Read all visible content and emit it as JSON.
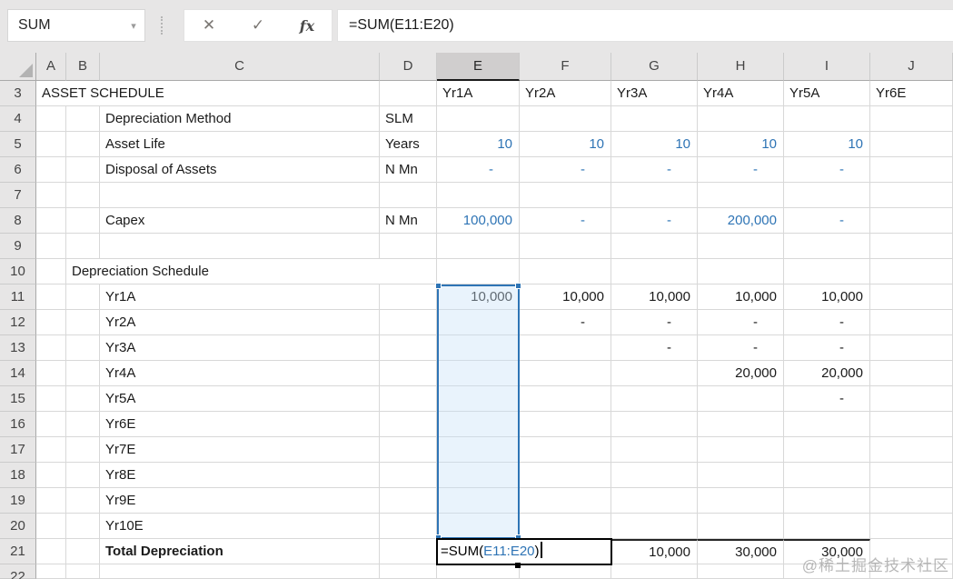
{
  "chrome": {
    "name_box": "SUM",
    "name_box_arrow": "▾",
    "cancel_label": "✕",
    "enter_label": "✓",
    "fx_label": "fx",
    "formula_bar_text": "=SUM(E11:E20)"
  },
  "formula": {
    "prefix": "=SUM(",
    "ref": "E11:E20",
    "suffix": ")"
  },
  "colors": {
    "input_blue": "#2E74B5",
    "selection_border": "#2E74B5",
    "selection_fill": "#E4EFF9",
    "header_bg": "#E7E6E6",
    "selected_header_bg": "#D0CECE",
    "gridline": "#D8D8D8",
    "text": "#1A1A1A"
  },
  "grid": {
    "column_headers": [
      "A",
      "B",
      "C",
      "D",
      "E",
      "F",
      "G",
      "H",
      "I",
      "J"
    ],
    "selected_column": "E",
    "first_row": 3,
    "last_row": 22,
    "active_cell": "E21",
    "selected_range": "E11:E20",
    "cells": [
      {
        "r": 3,
        "c": "A",
        "t": "ASSET SCHEDULE",
        "s": "lbl",
        "span": 3
      },
      {
        "r": 3,
        "c": "E",
        "t": "Yr1A",
        "s": "lbl"
      },
      {
        "r": 3,
        "c": "F",
        "t": "Yr2A",
        "s": "lbl"
      },
      {
        "r": 3,
        "c": "G",
        "t": "Yr3A",
        "s": "lbl"
      },
      {
        "r": 3,
        "c": "H",
        "t": "Yr4A",
        "s": "lbl"
      },
      {
        "r": 3,
        "c": "I",
        "t": "Yr5A",
        "s": "lbl"
      },
      {
        "r": 3,
        "c": "J",
        "t": "Yr6E",
        "s": "lbl"
      },
      {
        "r": 4,
        "c": "C",
        "t": "Depreciation Method",
        "s": "lbl"
      },
      {
        "r": 4,
        "c": "D",
        "t": "SLM",
        "s": "lbl"
      },
      {
        "r": 5,
        "c": "C",
        "t": "Asset Life",
        "s": "lbl"
      },
      {
        "r": 5,
        "c": "D",
        "t": "Years",
        "s": "lbl"
      },
      {
        "r": 5,
        "c": "E",
        "t": "10",
        "s": "inB"
      },
      {
        "r": 5,
        "c": "F",
        "t": "10",
        "s": "inB"
      },
      {
        "r": 5,
        "c": "G",
        "t": "10",
        "s": "inB"
      },
      {
        "r": 5,
        "c": "H",
        "t": "10",
        "s": "inB"
      },
      {
        "r": 5,
        "c": "I",
        "t": "10",
        "s": "inB"
      },
      {
        "r": 6,
        "c": "C",
        "t": "Disposal of Assets",
        "s": "lbl"
      },
      {
        "r": 6,
        "c": "D",
        "t": "N Mn",
        "s": "lbl"
      },
      {
        "r": 6,
        "c": "E",
        "t": "-",
        "s": "dashB"
      },
      {
        "r": 6,
        "c": "F",
        "t": "-",
        "s": "dashB"
      },
      {
        "r": 6,
        "c": "G",
        "t": "-",
        "s": "dashB"
      },
      {
        "r": 6,
        "c": "H",
        "t": "-",
        "s": "dashB"
      },
      {
        "r": 6,
        "c": "I",
        "t": "-",
        "s": "dashB"
      },
      {
        "r": 8,
        "c": "C",
        "t": "Capex",
        "s": "lbl"
      },
      {
        "r": 8,
        "c": "D",
        "t": "N Mn",
        "s": "lbl"
      },
      {
        "r": 8,
        "c": "E",
        "t": "100,000",
        "s": "inB"
      },
      {
        "r": 8,
        "c": "F",
        "t": "-",
        "s": "dashB"
      },
      {
        "r": 8,
        "c": "G",
        "t": "-",
        "s": "dashB"
      },
      {
        "r": 8,
        "c": "H",
        "t": "200,000",
        "s": "inB"
      },
      {
        "r": 8,
        "c": "I",
        "t": "-",
        "s": "dashB"
      },
      {
        "r": 10,
        "c": "B",
        "t": "Depreciation Schedule",
        "s": "lbl",
        "span": 3
      },
      {
        "r": 11,
        "c": "C",
        "t": "Yr1A",
        "s": "lbl"
      },
      {
        "r": 11,
        "c": "E",
        "t": "10,000",
        "s": "num"
      },
      {
        "r": 11,
        "c": "F",
        "t": "10,000",
        "s": "num"
      },
      {
        "r": 11,
        "c": "G",
        "t": "10,000",
        "s": "num"
      },
      {
        "r": 11,
        "c": "H",
        "t": "10,000",
        "s": "num"
      },
      {
        "r": 11,
        "c": "I",
        "t": "10,000",
        "s": "num"
      },
      {
        "r": 12,
        "c": "C",
        "t": "Yr2A",
        "s": "lbl"
      },
      {
        "r": 12,
        "c": "F",
        "t": "-",
        "s": "dash"
      },
      {
        "r": 12,
        "c": "G",
        "t": "-",
        "s": "dash"
      },
      {
        "r": 12,
        "c": "H",
        "t": "-",
        "s": "dash"
      },
      {
        "r": 12,
        "c": "I",
        "t": "-",
        "s": "dash"
      },
      {
        "r": 13,
        "c": "C",
        "t": "Yr3A",
        "s": "lbl"
      },
      {
        "r": 13,
        "c": "G",
        "t": "-",
        "s": "dash"
      },
      {
        "r": 13,
        "c": "H",
        "t": "-",
        "s": "dash"
      },
      {
        "r": 13,
        "c": "I",
        "t": "-",
        "s": "dash"
      },
      {
        "r": 14,
        "c": "C",
        "t": "Yr4A",
        "s": "lbl"
      },
      {
        "r": 14,
        "c": "H",
        "t": "20,000",
        "s": "num"
      },
      {
        "r": 14,
        "c": "I",
        "t": "20,000",
        "s": "num"
      },
      {
        "r": 15,
        "c": "C",
        "t": "Yr5A",
        "s": "lbl"
      },
      {
        "r": 15,
        "c": "I",
        "t": "-",
        "s": "dash"
      },
      {
        "r": 16,
        "c": "C",
        "t": "Yr6E",
        "s": "lbl"
      },
      {
        "r": 17,
        "c": "C",
        "t": "Yr7E",
        "s": "lbl"
      },
      {
        "r": 18,
        "c": "C",
        "t": "Yr8E",
        "s": "lbl"
      },
      {
        "r": 19,
        "c": "C",
        "t": "Yr9E",
        "s": "lbl"
      },
      {
        "r": 20,
        "c": "C",
        "t": "Yr10E",
        "s": "lbl"
      },
      {
        "r": 21,
        "c": "C",
        "t": "Total Depreciation",
        "s": "lblB"
      },
      {
        "r": 21,
        "c": "G",
        "t": "10,000",
        "s": "total"
      },
      {
        "r": 21,
        "c": "H",
        "t": "30,000",
        "s": "total"
      },
      {
        "r": 21,
        "c": "I",
        "t": "30,000",
        "s": "total"
      }
    ]
  },
  "watermark": "@稀土掘金技术社区"
}
